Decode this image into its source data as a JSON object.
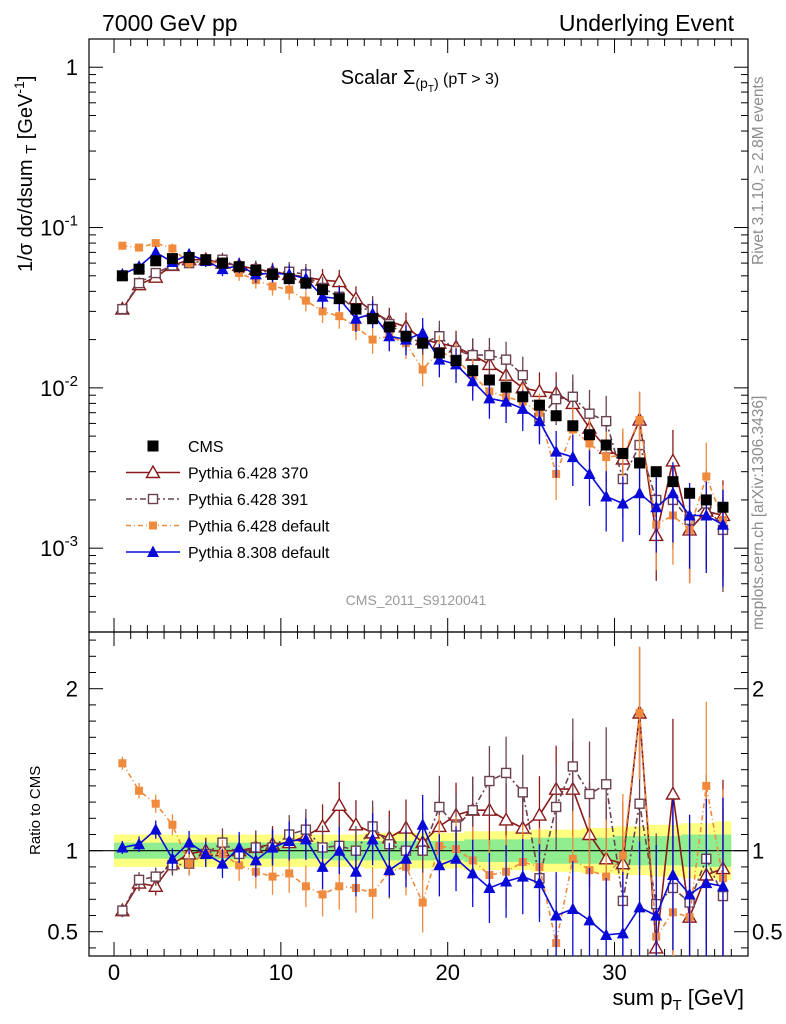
{
  "header": {
    "left_title": "7000 GeV pp",
    "right_title": "Underlying Event"
  },
  "side_labels": {
    "rivet": "Rivet 3.1.10, ≥ 2.8M events",
    "mcplots": "mcplots.cern.ch [arXiv:1306.3436]"
  },
  "chart_data": [
    {
      "type": "scatter",
      "panel": "main",
      "title": "Scalar Σ(p_T) (pT >  3)",
      "analysis_label": "CMS_2011_S9120041",
      "ylabel": "1/σ dσ/dsum p_T [GeV^-1]",
      "yscale": "log",
      "ylim": [
        0.0003,
        1.5
      ],
      "ytick_labels": [
        "1",
        "10^-1",
        "10^-2",
        "10^-3"
      ],
      "xlim": [
        -1.5,
        38
      ],
      "legend_position": "lower-left",
      "x": [
        0.5,
        1.5,
        2.5,
        3.5,
        4.5,
        5.5,
        6.5,
        7.5,
        8.5,
        9.5,
        10.5,
        11.5,
        12.5,
        13.5,
        14.5,
        15.5,
        16.5,
        17.5,
        18.5,
        19.5,
        20.5,
        21.5,
        22.5,
        23.5,
        24.5,
        25.5,
        26.5,
        27.5,
        28.5,
        29.5,
        30.5,
        31.5,
        32.5,
        33.5,
        34.5,
        35.5,
        36.5
      ],
      "series": [
        {
          "name": "CMS",
          "color": "#000000",
          "marker": "square-filled",
          "values": [
            0.05,
            0.055,
            0.062,
            0.064,
            0.065,
            0.063,
            0.06,
            0.057,
            0.054,
            0.051,
            0.048,
            0.045,
            0.041,
            0.036,
            0.031,
            0.027,
            0.024,
            0.021,
            0.019,
            0.0165,
            0.0148,
            0.0128,
            0.0112,
            0.0101,
            0.0088,
            0.0078,
            0.0067,
            0.0058,
            0.0051,
            0.0044,
            0.0039,
            0.0034,
            0.003,
            0.0026,
            0.0022,
            0.002,
            0.0018
          ]
        },
        {
          "name": "Pythia 6.428 370",
          "color": "#8b1a1a",
          "marker": "triangle-open",
          "values": [
            0.031,
            0.044,
            0.049,
            0.058,
            0.063,
            0.063,
            0.06,
            0.058,
            0.055,
            0.053,
            0.051,
            0.049,
            0.047,
            0.046,
            0.036,
            0.03,
            0.026,
            0.024,
            0.02,
            0.019,
            0.018,
            0.016,
            0.014,
            0.012,
            0.01,
            0.0095,
            0.0093,
            0.008,
            0.0056,
            0.0042,
            0.0036,
            0.0063,
            0.0012,
            0.0035,
            0.0013,
            0.0017,
            0.0016
          ]
        },
        {
          "name": "Pythia 6.428 391",
          "color": "#6b4250",
          "marker": "square-open",
          "values": [
            0.031,
            0.045,
            0.052,
            0.058,
            0.06,
            0.062,
            0.063,
            0.056,
            0.055,
            0.052,
            0.053,
            0.051,
            0.042,
            0.037,
            0.031,
            0.031,
            0.025,
            0.021,
            0.019,
            0.021,
            0.017,
            0.016,
            0.016,
            0.015,
            0.012,
            0.0065,
            0.0085,
            0.0088,
            0.0069,
            0.0062,
            0.0027,
            0.0044,
            0.002,
            0.002,
            0.0015,
            0.0019,
            0.0013
          ]
        },
        {
          "name": "Pythia 6.428 default",
          "color": "#f08a3c",
          "marker": "square-filled-small",
          "values": [
            0.077,
            0.075,
            0.08,
            0.074,
            0.06,
            0.062,
            0.059,
            0.052,
            0.047,
            0.043,
            0.041,
            0.035,
            0.03,
            0.028,
            0.024,
            0.02,
            0.021,
            0.019,
            0.013,
            0.017,
            0.015,
            0.012,
            0.0095,
            0.0088,
            0.0082,
            0.007,
            0.0029,
            0.0055,
            0.0045,
            0.0037,
            0.0038,
            0.0063,
            0.0014,
            0.0016,
            0.0013,
            0.0028,
            0.0015
          ]
        },
        {
          "name": "Pythia 8.308 default",
          "color": "#0a0ad8",
          "marker": "triangle-filled",
          "values": [
            0.051,
            0.057,
            0.07,
            0.061,
            0.068,
            0.062,
            0.055,
            0.058,
            0.051,
            0.052,
            0.051,
            0.048,
            0.037,
            0.036,
            0.027,
            0.029,
            0.021,
            0.02,
            0.022,
            0.015,
            0.014,
            0.011,
            0.0086,
            0.0082,
            0.0074,
            0.0062,
            0.004,
            0.0037,
            0.0029,
            0.0021,
            0.0019,
            0.0022,
            0.0018,
            0.0022,
            0.0016,
            0.0016,
            0.0014
          ]
        }
      ]
    },
    {
      "type": "scatter",
      "panel": "ratio",
      "ylabel": "Ratio to CMS",
      "xlabel": "sum p_T [GeV]",
      "ylim": [
        0.35,
        2.35
      ],
      "ytick_labels": [
        "0.5",
        "1",
        "2"
      ],
      "xtick_labels": [
        "0",
        "10",
        "20",
        "30"
      ],
      "band_inner_halfwidth": [
        0.05,
        0.05,
        0.05,
        0.05,
        0.05,
        0.05,
        0.05,
        0.05,
        0.05,
        0.05,
        0.05,
        0.05,
        0.05,
        0.06,
        0.06,
        0.06,
        0.06,
        0.06,
        0.06,
        0.06,
        0.06,
        0.07,
        0.07,
        0.07,
        0.07,
        0.08,
        0.08,
        0.08,
        0.08,
        0.08,
        0.09,
        0.09,
        0.09,
        0.09,
        0.1,
        0.1,
        0.1
      ],
      "band_outer_halfwidth": [
        0.1,
        0.1,
        0.1,
        0.1,
        0.1,
        0.1,
        0.1,
        0.1,
        0.1,
        0.1,
        0.1,
        0.1,
        0.1,
        0.1,
        0.1,
        0.11,
        0.11,
        0.11,
        0.11,
        0.11,
        0.11,
        0.12,
        0.12,
        0.12,
        0.12,
        0.13,
        0.13,
        0.13,
        0.14,
        0.14,
        0.15,
        0.15,
        0.16,
        0.16,
        0.17,
        0.17,
        0.18
      ],
      "series": [
        {
          "name": "Pythia 6.428 370",
          "color": "#8b1a1a",
          "values": [
            0.63,
            0.8,
            0.78,
            0.92,
            0.98,
            1.0,
            1.0,
            1.0,
            1.02,
            1.04,
            1.05,
            1.09,
            1.15,
            1.28,
            1.16,
            1.11,
            1.08,
            1.14,
            1.05,
            1.15,
            1.22,
            1.25,
            1.25,
            1.19,
            1.14,
            1.22,
            1.38,
            1.38,
            1.1,
            0.95,
            0.92,
            1.85,
            0.4,
            1.35,
            0.59,
            0.85,
            0.89
          ]
        },
        {
          "name": "Pythia 6.428 391",
          "color": "#6b4250",
          "values": [
            0.63,
            0.82,
            0.84,
            0.91,
            0.92,
            0.98,
            1.05,
            0.98,
            1.02,
            1.02,
            1.1,
            1.13,
            1.02,
            1.03,
            1.0,
            1.15,
            1.04,
            1.0,
            1.0,
            1.27,
            1.15,
            1.25,
            1.43,
            1.48,
            1.36,
            0.83,
            1.27,
            1.52,
            1.35,
            1.41,
            0.69,
            1.29,
            0.67,
            0.77,
            0.68,
            0.95,
            0.72
          ]
        },
        {
          "name": "Pythia 6.428 default",
          "color": "#f08a3c",
          "values": [
            1.54,
            1.37,
            1.29,
            1.16,
            0.92,
            0.98,
            0.98,
            0.91,
            0.87,
            0.84,
            0.86,
            0.78,
            0.73,
            0.78,
            0.77,
            0.74,
            0.87,
            0.9,
            0.68,
            1.03,
            1.01,
            0.94,
            0.85,
            0.87,
            0.93,
            0.9,
            0.43,
            0.95,
            0.88,
            0.84,
            0.97,
            1.85,
            0.47,
            0.62,
            0.59,
            1.4,
            0.83
          ]
        },
        {
          "name": "Pythia 8.308 default",
          "color": "#0a0ad8",
          "values": [
            1.02,
            1.04,
            1.13,
            0.95,
            1.05,
            0.98,
            0.92,
            1.02,
            0.94,
            1.02,
            1.06,
            1.07,
            0.9,
            1.0,
            0.87,
            1.07,
            0.88,
            0.95,
            1.16,
            0.91,
            0.95,
            0.86,
            0.77,
            0.81,
            0.84,
            0.8,
            0.6,
            0.64,
            0.57,
            0.48,
            0.49,
            0.65,
            0.6,
            0.85,
            0.73,
            0.8,
            0.78
          ]
        }
      ]
    }
  ]
}
